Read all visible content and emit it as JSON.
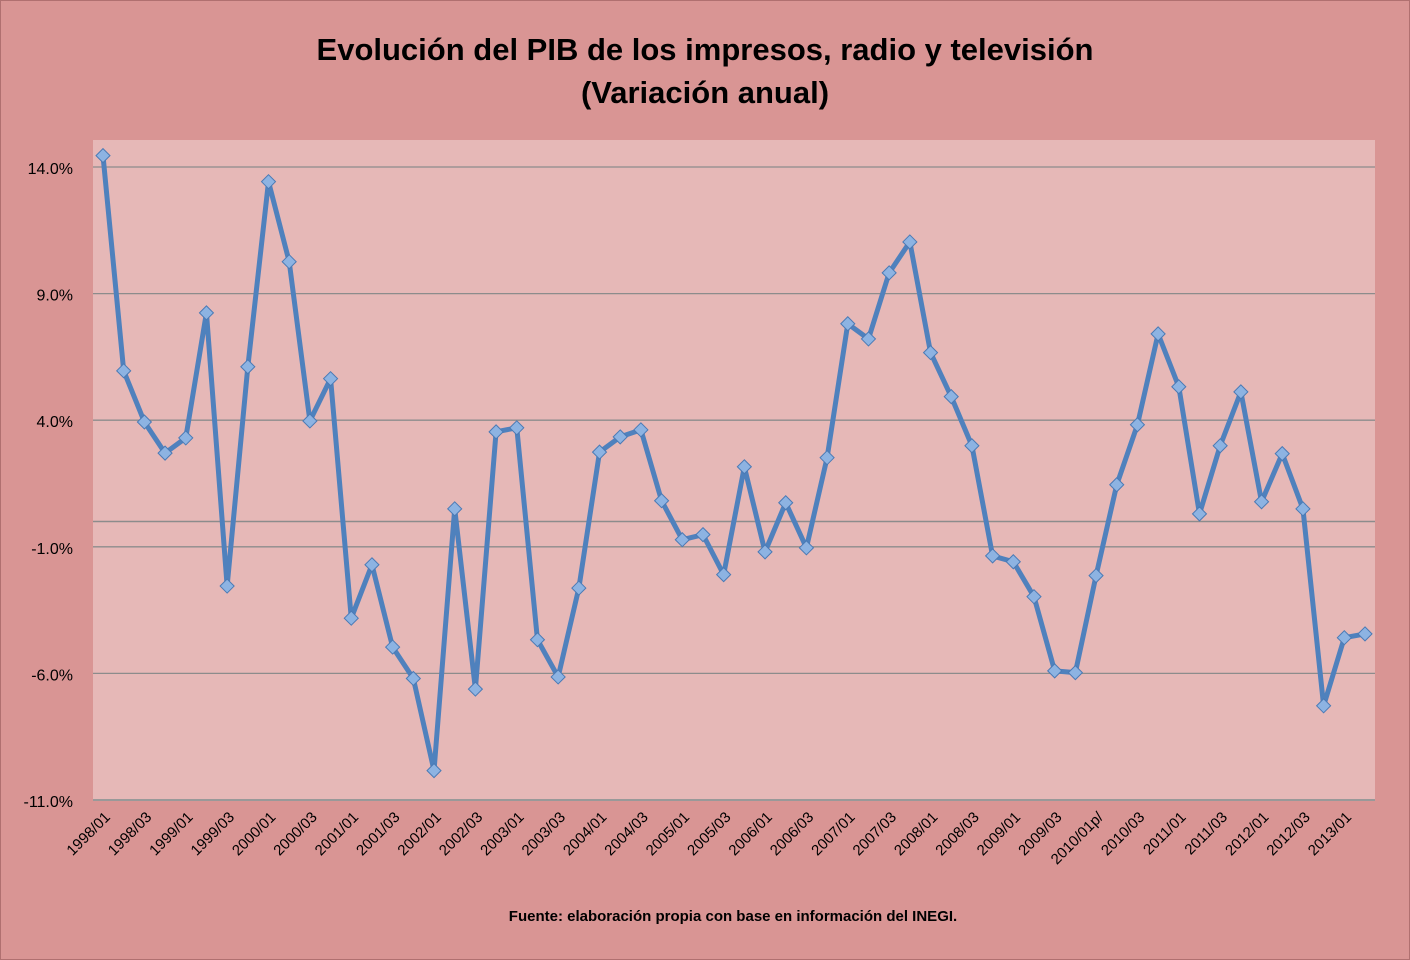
{
  "chart_data": {
    "type": "line",
    "title_line1": "Evolución del PIB de los impresos, radio y televisión",
    "title_line2": "(Variación anual)",
    "source": "Fuente: elaboración propia con base en información del INEGI.",
    "xlabel": "",
    "ylabel": "",
    "ylim": [
      -11,
      14
    ],
    "y_ticks": [
      14,
      9,
      4,
      -1,
      -6,
      -11
    ],
    "y_tick_labels": [
      "14.0%",
      "9.0%",
      "4.0%",
      "-1.0%",
      "-6.0%",
      "-11.0%"
    ],
    "grid": true,
    "x_tick_labels": [
      "1998/01",
      "1998/03",
      "1999/01",
      "1999/03",
      "2000/01",
      "2000/03",
      "2001/01",
      "2001/03",
      "2002/01",
      "2002/03",
      "2003/01",
      "2003/03",
      "2004/01",
      "2004/03",
      "2005/01",
      "2005/03",
      "2006/01",
      "2006/03",
      "2007/01",
      "2007/03",
      "2008/01",
      "2008/03",
      "2009/01",
      "2009/03",
      "2010/01p/",
      "2010/03",
      "2011/01",
      "2011/03",
      "2012/01",
      "2012/03",
      "2013/01"
    ],
    "x_label_every": 2,
    "values": [
      14.45,
      5.95,
      3.93,
      2.7,
      3.3,
      8.24,
      -2.55,
      6.11,
      13.42,
      10.26,
      3.97,
      5.64,
      -3.82,
      -1.71,
      -4.96,
      -6.2,
      -9.84,
      0.5,
      -6.62,
      3.54,
      3.7,
      -4.67,
      -6.14,
      -2.63,
      2.74,
      3.34,
      3.62,
      0.82,
      -0.72,
      -0.52,
      -2.1,
      2.16,
      -1.2,
      0.74,
      -1.04,
      2.52,
      7.81,
      7.21,
      9.82,
      11.04,
      6.67,
      4.93,
      2.99,
      -1.36,
      -1.59,
      -2.97,
      -5.9,
      -5.97,
      -2.14,
      1.45,
      3.82,
      7.41,
      5.32,
      0.3,
      2.99,
      5.12,
      0.78,
      2.68,
      0.5,
      -7.28,
      -4.59,
      -4.44
    ],
    "colors": {
      "background": "#d99594",
      "plot_area": "#e6b8b7",
      "line": "#4f81bd",
      "marker": "#8db3e2",
      "grid": "#8c8c8c"
    }
  }
}
